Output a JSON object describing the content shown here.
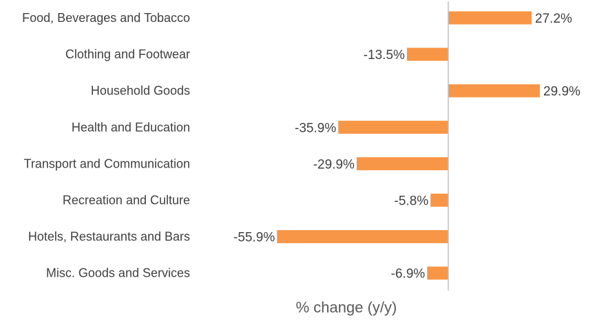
{
  "chart_data": {
    "type": "bar",
    "orientation": "horizontal",
    "categories": [
      "Food, Beverages and Tobacco",
      "Clothing and Footwear",
      "Household Goods",
      "Health and Education",
      "Transport and Communication",
      "Recreation and Culture",
      "Hotels, Restaurants and Bars",
      "Misc. Goods and Services"
    ],
    "values": [
      27.2,
      -13.5,
      29.9,
      -35.9,
      -29.9,
      -5.8,
      -55.9,
      -6.9
    ],
    "value_labels": [
      "27.2%",
      "-13.5%",
      "29.9%",
      "-35.9%",
      "-29.9%",
      "-5.8%",
      "-55.9%",
      "-6.9%"
    ],
    "title": "",
    "xlabel": "% change (y/y)",
    "ylabel": "",
    "xlim": [
      -60,
      30
    ],
    "grid": false,
    "legend": "none",
    "bar_color": "#F79646",
    "axis_color": "#BFBFBF",
    "text_color": "#404040"
  }
}
